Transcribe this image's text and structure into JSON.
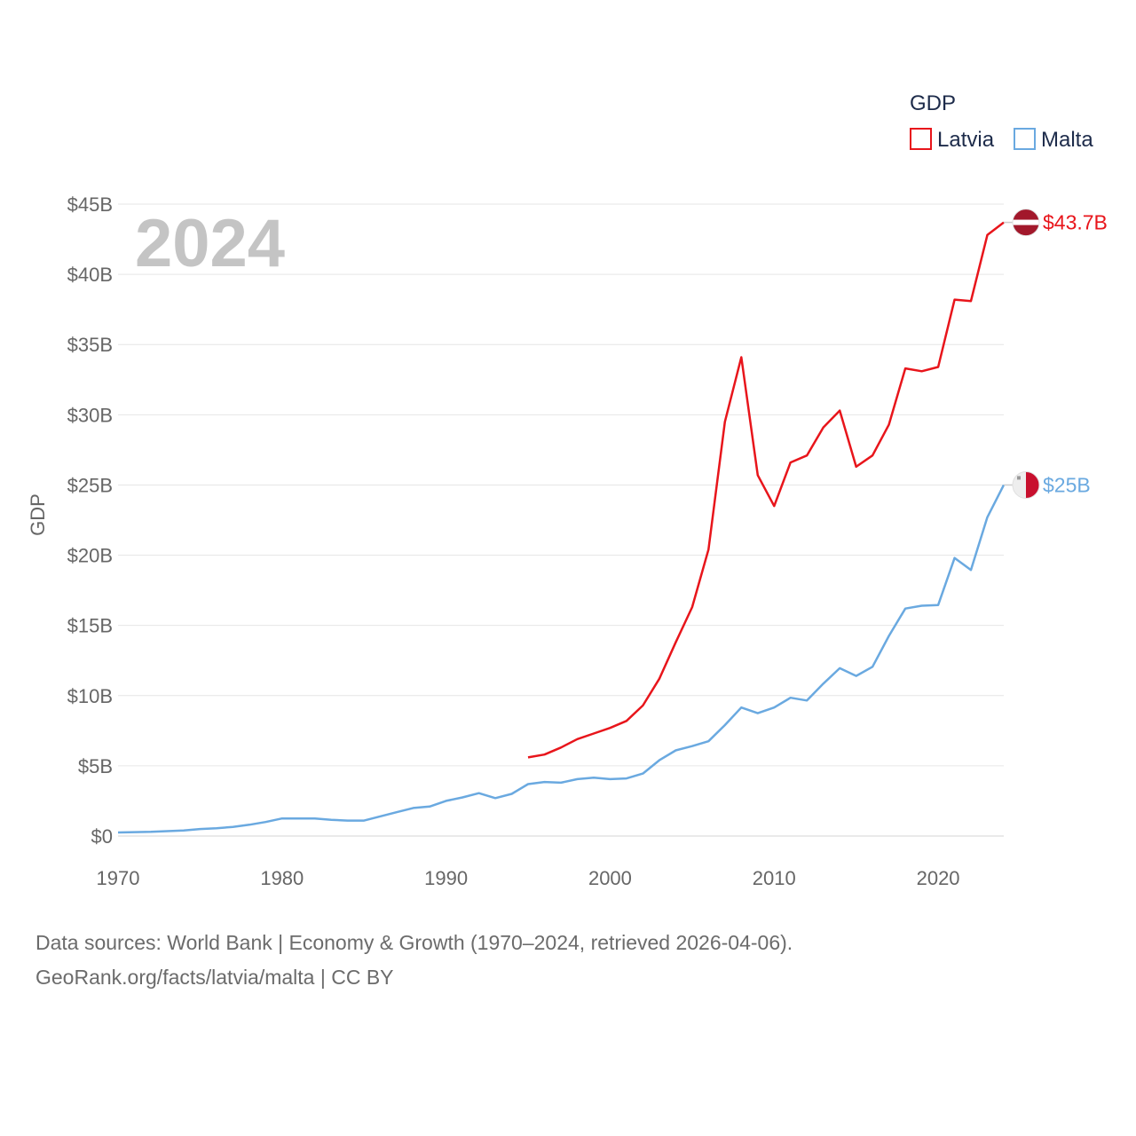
{
  "chart_data": {
    "type": "line",
    "title": "GDP",
    "year_label": "2024",
    "ylabel": "GDP",
    "xlabel": "",
    "xlim": [
      1970,
      2024
    ],
    "ylim": [
      0,
      45
    ],
    "x_ticks": [
      1970,
      1980,
      1990,
      2000,
      2010,
      2020
    ],
    "y_ticks": [
      0,
      5,
      10,
      15,
      20,
      25,
      30,
      35,
      40,
      45
    ],
    "y_tick_labels": [
      "$0",
      "$5B",
      "$10B",
      "$15B",
      "$20B",
      "$25B",
      "$30B",
      "$35B",
      "$40B",
      "$45B"
    ],
    "grid": true,
    "legend_position": "top-right",
    "legend_title": "GDP",
    "series": [
      {
        "name": "Latvia",
        "color": "#e8151b",
        "end_label": "$43.7B",
        "flag": "latvia-flag",
        "x": [
          1995,
          1996,
          1997,
          1998,
          1999,
          2000,
          2001,
          2002,
          2003,
          2004,
          2005,
          2006,
          2007,
          2008,
          2009,
          2010,
          2011,
          2012,
          2013,
          2014,
          2015,
          2016,
          2017,
          2018,
          2019,
          2020,
          2021,
          2022,
          2023,
          2024
        ],
        "values": [
          5.6,
          5.8,
          6.3,
          6.9,
          7.3,
          7.7,
          8.2,
          9.3,
          11.2,
          13.8,
          16.3,
          20.4,
          29.5,
          34.1,
          25.7,
          23.5,
          26.6,
          27.1,
          29.1,
          30.3,
          26.3,
          27.1,
          29.3,
          33.3,
          33.1,
          33.4,
          38.2,
          38.1,
          42.8,
          43.7
        ]
      },
      {
        "name": "Malta",
        "color": "#6aa9e0",
        "end_label": "$25B",
        "flag": "malta-flag",
        "x": [
          1970,
          1971,
          1972,
          1973,
          1974,
          1975,
          1976,
          1977,
          1978,
          1979,
          1980,
          1981,
          1982,
          1983,
          1984,
          1985,
          1986,
          1987,
          1988,
          1989,
          1990,
          1991,
          1992,
          1993,
          1994,
          1995,
          1996,
          1997,
          1998,
          1999,
          2000,
          2001,
          2002,
          2003,
          2004,
          2005,
          2006,
          2007,
          2008,
          2009,
          2010,
          2011,
          2012,
          2013,
          2014,
          2015,
          2016,
          2017,
          2018,
          2019,
          2020,
          2021,
          2022,
          2023,
          2024
        ],
        "values": [
          0.25,
          0.28,
          0.3,
          0.35,
          0.4,
          0.5,
          0.55,
          0.65,
          0.8,
          1.0,
          1.25,
          1.25,
          1.25,
          1.15,
          1.1,
          1.1,
          1.4,
          1.7,
          2.0,
          2.1,
          2.5,
          2.75,
          3.05,
          2.7,
          3.0,
          3.7,
          3.85,
          3.8,
          4.05,
          4.15,
          4.05,
          4.1,
          4.45,
          5.4,
          6.1,
          6.4,
          6.75,
          7.9,
          9.15,
          8.75,
          9.15,
          9.85,
          9.65,
          10.85,
          11.95,
          11.4,
          12.05,
          14.25,
          16.2,
          16.4,
          16.45,
          19.8,
          18.95,
          22.7,
          25.0
        ]
      }
    ]
  },
  "footer": {
    "line1": "Data sources: World Bank | Economy & Growth (1970–2024, retrieved 2026-04-06).",
    "line2": "GeoRank.org/facts/latvia/malta | CC BY"
  }
}
